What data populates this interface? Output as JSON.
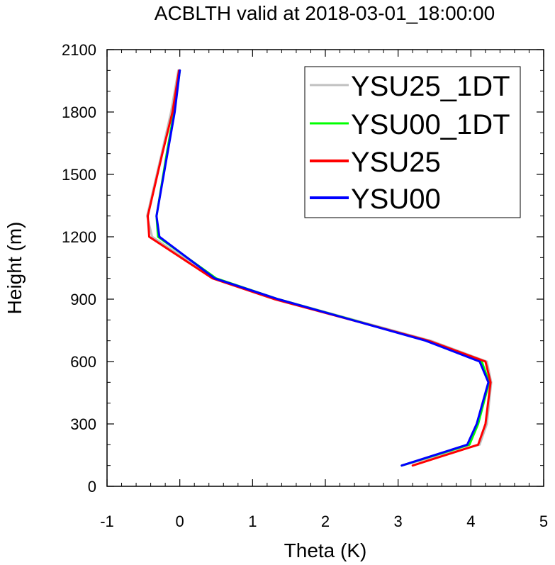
{
  "chart_data": {
    "type": "line",
    "title": "ACBLTH valid at 2018-03-01_18:00:00",
    "xlabel": "Theta (K)",
    "ylabel": "Height (m)",
    "xlim": [
      -1,
      5
    ],
    "ylim": [
      0,
      2100
    ],
    "xticks": [
      "-1",
      "0",
      "1",
      "2",
      "3",
      "4",
      "5"
    ],
    "yticks": [
      "0",
      "300",
      "600",
      "900",
      "1200",
      "1500",
      "1800",
      "2100"
    ],
    "grid": false,
    "legend_position": "top-right",
    "series": [
      {
        "name": "YSU25_1DT",
        "color": "#c0c0c0",
        "points": [
          [
            3.05,
            100
          ],
          [
            4.12,
            200
          ],
          [
            4.22,
            300
          ],
          [
            4.28,
            500
          ],
          [
            4.22,
            600
          ],
          [
            3.45,
            700
          ],
          [
            1.35,
            900
          ],
          [
            0.48,
            1000
          ],
          [
            -0.38,
            1200
          ],
          [
            -0.45,
            1300
          ],
          [
            -0.25,
            1600
          ],
          [
            -0.12,
            1800
          ],
          [
            -0.02,
            2000
          ]
        ]
      },
      {
        "name": "YSU00_1DT",
        "color": "#00ff00",
        "points": [
          [
            3.05,
            100
          ],
          [
            3.98,
            200
          ],
          [
            4.1,
            300
          ],
          [
            4.25,
            500
          ],
          [
            4.15,
            600
          ],
          [
            3.4,
            700
          ],
          [
            1.35,
            900
          ],
          [
            0.5,
            1000
          ],
          [
            -0.3,
            1200
          ],
          [
            -0.32,
            1300
          ],
          [
            -0.18,
            1600
          ],
          [
            -0.08,
            1800
          ],
          [
            0.0,
            2000
          ]
        ]
      },
      {
        "name": "YSU25",
        "color": "#ff0000",
        "points": [
          [
            3.2,
            100
          ],
          [
            4.1,
            200
          ],
          [
            4.2,
            300
          ],
          [
            4.27,
            500
          ],
          [
            4.2,
            600
          ],
          [
            3.42,
            700
          ],
          [
            1.3,
            900
          ],
          [
            0.45,
            1000
          ],
          [
            -0.42,
            1200
          ],
          [
            -0.44,
            1300
          ],
          [
            -0.24,
            1600
          ],
          [
            -0.1,
            1800
          ],
          [
            -0.01,
            2000
          ]
        ]
      },
      {
        "name": "YSU00",
        "color": "#0000ff",
        "points": [
          [
            3.05,
            100
          ],
          [
            3.95,
            200
          ],
          [
            4.08,
            300
          ],
          [
            4.24,
            500
          ],
          [
            4.12,
            600
          ],
          [
            3.38,
            700
          ],
          [
            1.35,
            900
          ],
          [
            0.48,
            1000
          ],
          [
            -0.28,
            1200
          ],
          [
            -0.32,
            1300
          ],
          [
            -0.17,
            1600
          ],
          [
            -0.07,
            1800
          ],
          [
            0.0,
            2000
          ]
        ]
      }
    ]
  }
}
